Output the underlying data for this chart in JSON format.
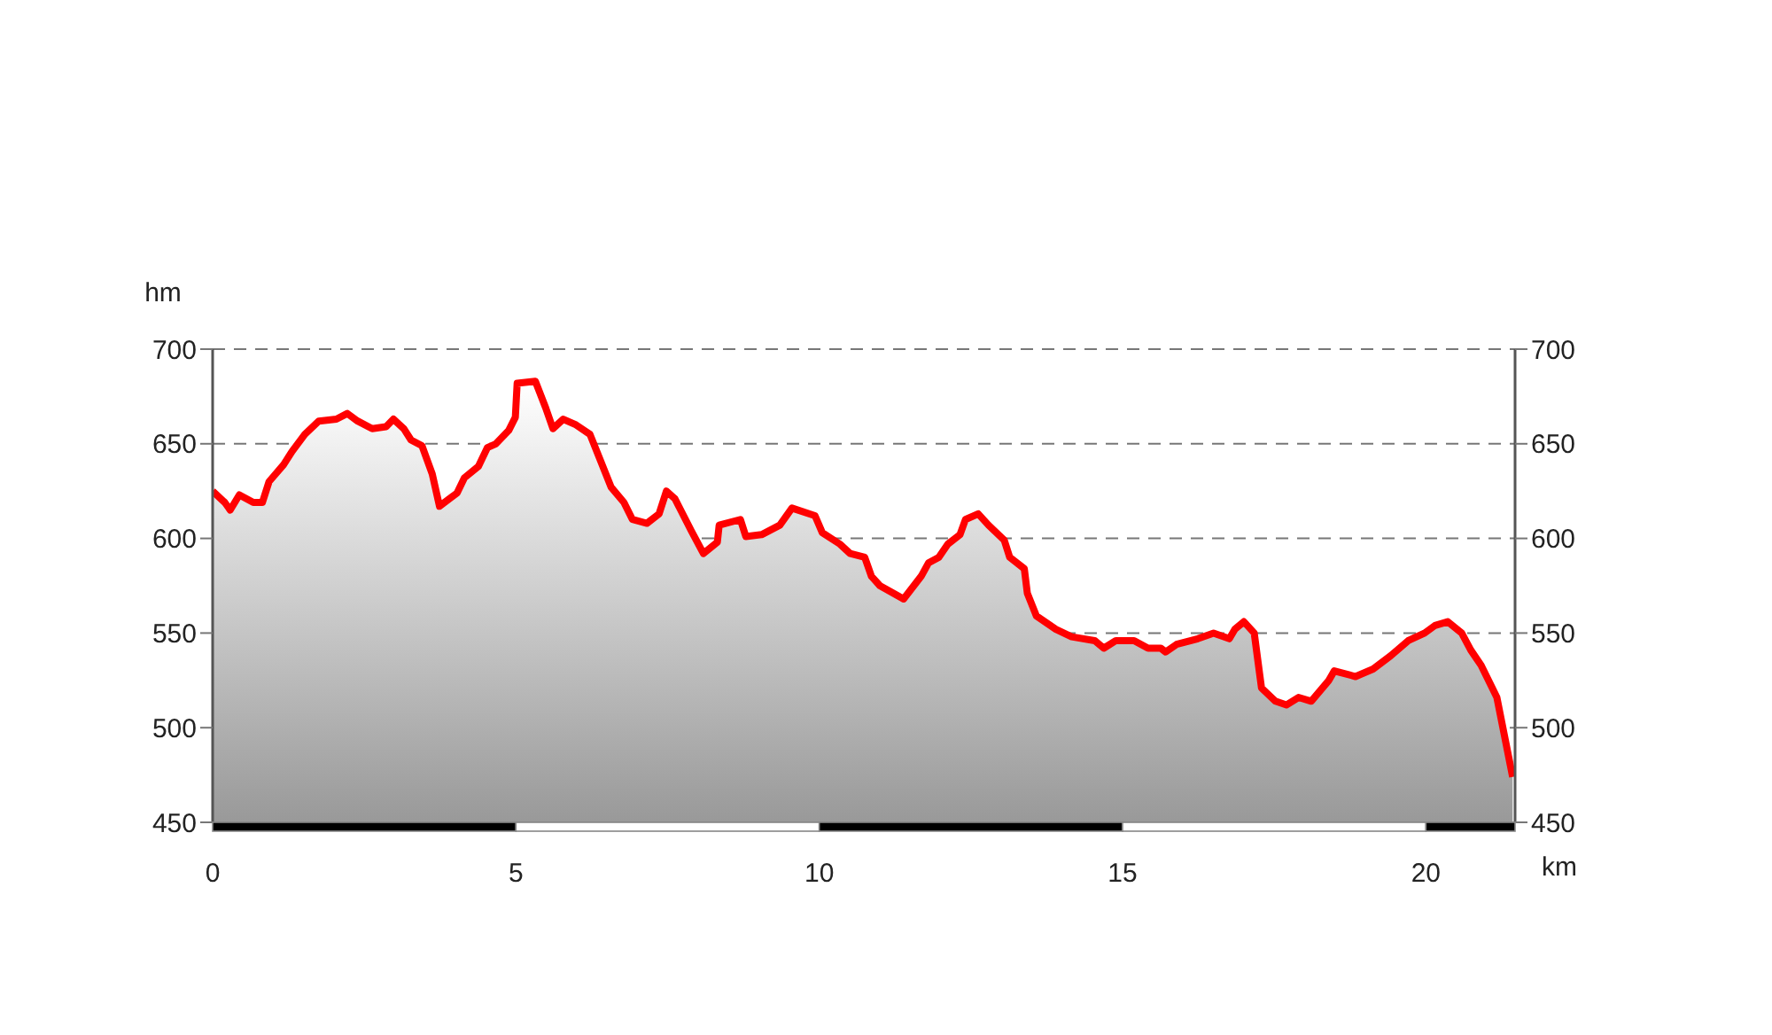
{
  "chart_data": {
    "type": "area",
    "xlabel": "km",
    "ylabel": "hm",
    "color": "#ff0000",
    "x": [
      0,
      0.2,
      0.29,
      0.44,
      0.67,
      0.82,
      0.93,
      1.17,
      1.31,
      1.52,
      1.75,
      2.04,
      2.22,
      2.39,
      2.63,
      2.86,
      2.98,
      3.15,
      3.27,
      3.45,
      3.62,
      3.74,
      4.03,
      4.15,
      4.38,
      4.53,
      4.67,
      4.88,
      4.99,
      5.02,
      5.32,
      5.49,
      5.61,
      5.78,
      5.99,
      6.22,
      6.37,
      6.57,
      6.78,
      6.92,
      7.16,
      7.36,
      7.48,
      7.62,
      7.89,
      8.09,
      8.32,
      8.35,
      8.7,
      8.79,
      9.05,
      9.35,
      9.55,
      9.93,
      10.05,
      10.34,
      10.51,
      10.75,
      10.86,
      11.0,
      11.39,
      11.68,
      11.8,
      11.97,
      12.12,
      12.32,
      12.41,
      12.62,
      12.79,
      13.05,
      13.14,
      13.38,
      13.43,
      13.58,
      13.9,
      14.16,
      14.54,
      14.69,
      14.89,
      15.19,
      15.42,
      15.63,
      15.71,
      15.89,
      16.24,
      16.5,
      16.76,
      16.85,
      17.0,
      17.17,
      17.29,
      17.52,
      17.7,
      17.9,
      18.11,
      18.4,
      18.49,
      18.84,
      19.13,
      19.42,
      19.71,
      19.98,
      20.15,
      20.36,
      20.59,
      20.74,
      20.91,
      21.17,
      21.43
    ],
    "values": [
      625,
      619,
      615,
      623,
      619,
      619,
      630,
      639,
      646,
      655,
      662,
      663,
      666,
      662,
      658,
      659,
      663,
      658,
      652,
      649,
      634,
      617,
      624,
      632,
      638,
      648,
      650,
      657,
      664,
      682,
      683,
      669,
      658,
      663,
      660,
      655,
      643,
      627,
      619,
      610,
      608,
      613,
      625,
      621,
      604,
      592,
      598,
      607,
      610,
      601,
      602,
      607,
      616,
      612,
      603,
      597,
      592,
      590,
      580,
      575,
      568,
      580,
      587,
      590,
      597,
      602,
      610,
      613,
      607,
      599,
      590,
      584,
      571,
      559,
      552,
      548,
      546,
      542,
      546,
      546,
      542,
      542,
      540,
      544,
      547,
      550,
      547,
      552,
      556,
      550,
      521,
      514,
      512,
      516,
      514,
      525,
      530,
      527,
      531,
      538,
      546,
      550,
      554,
      556,
      550,
      541,
      533,
      516,
      474
    ],
    "xlim": [
      0,
      21.47
    ],
    "xticks": [
      0,
      5,
      10,
      15,
      20
    ],
    "ylim": [
      450,
      700
    ],
    "yticks": [
      450,
      500,
      550,
      600,
      650,
      700
    ],
    "y2lim": [
      450,
      700
    ],
    "y2ticks": [
      450,
      500,
      550,
      600,
      650,
      700
    ],
    "grid": "y"
  }
}
